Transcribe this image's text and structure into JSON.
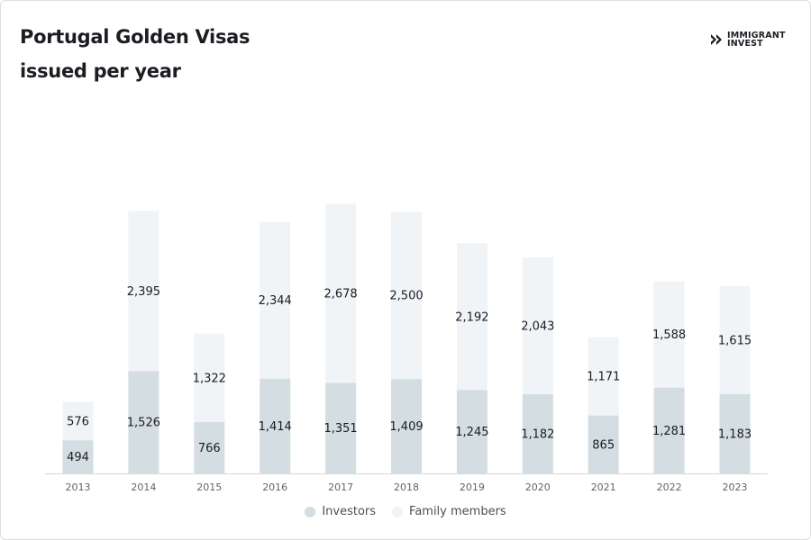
{
  "header": {
    "title_line1": "Portugal Golden Visas",
    "title_line2": "issued per year"
  },
  "brand": {
    "line1": "IMMIGRANT",
    "line2": "INVEST",
    "icon": "double-chevron-logo-icon"
  },
  "colors": {
    "investors": "#d3dde2",
    "family": "#f0f4f7",
    "text": "#1b1d22",
    "axis": "#d5d9dd",
    "tick": "#5f646b"
  },
  "chart_data": {
    "type": "bar",
    "stacked": true,
    "categories": [
      "2013",
      "2014",
      "2015",
      "2016",
      "2017",
      "2018",
      "2019",
      "2020",
      "2021",
      "2022",
      "2023"
    ],
    "series": [
      {
        "name": "Investors",
        "values": [
          494,
          1526,
          766,
          1414,
          1351,
          1409,
          1245,
          1182,
          865,
          1281,
          1183
        ],
        "labels": [
          "494",
          "1,526",
          "766",
          "1,414",
          "1,351",
          "1,409",
          "1,245",
          "1,182",
          "865",
          "1,281",
          "1,183"
        ]
      },
      {
        "name": "Family members",
        "values": [
          576,
          2395,
          1322,
          2344,
          2678,
          2500,
          2192,
          2043,
          1171,
          1588,
          1615
        ],
        "labels": [
          "576",
          "2,395",
          "1,322",
          "2,344",
          "2,678",
          "2,500",
          "2,192",
          "2,043",
          "1,171",
          "1,588",
          "1,615"
        ]
      }
    ],
    "title": "Portugal Golden Visas issued per year",
    "xlabel": "",
    "ylabel": "",
    "ylim": [
      0,
      4100
    ],
    "grid": false,
    "legend": "bottom-center"
  }
}
